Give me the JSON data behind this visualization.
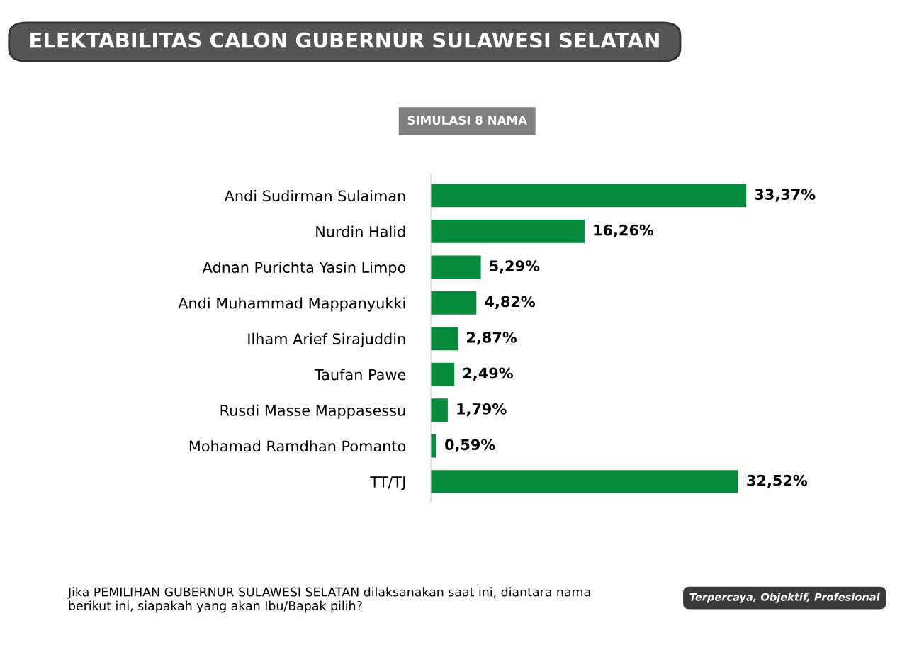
{
  "chart_data": {
    "type": "bar",
    "orientation": "horizontal",
    "title": "ELEKTABILITAS CALON GUBERNUR SULAWESI SELATAN",
    "subtitle": "SIMULASI 8 NAMA",
    "categories": [
      "Andi Sudirman Sulaiman",
      "Nurdin Halid",
      "Adnan Purichta Yasin Limpo",
      "Andi Muhammad Mappanyukki",
      "Ilham Arief Sirajuddin",
      "Taufan Pawe",
      "Rusdi Masse Mappasessu",
      "Mohamad Ramdhan Pomanto",
      "TT/TJ"
    ],
    "values": [
      33.37,
      16.26,
      5.29,
      4.82,
      2.87,
      2.49,
      1.79,
      0.59,
      32.52
    ],
    "value_labels": [
      "33,37%",
      "16,26%",
      "5,29%",
      "4,82%",
      "2,87%",
      "2,49%",
      "1,79%",
      "0,59%",
      "32,52%"
    ],
    "color": "#058a3c",
    "grid": false,
    "legend": false,
    "annotations": [
      "Jika PEMILIHAN GUBERNUR SULAWESI SELATAN dilaksanakan saat ini, diantara nama berikut ini, siapakah yang akan Ibu/Bapak pilih?",
      "Terpercaya, Objektif, Profesional"
    ]
  }
}
